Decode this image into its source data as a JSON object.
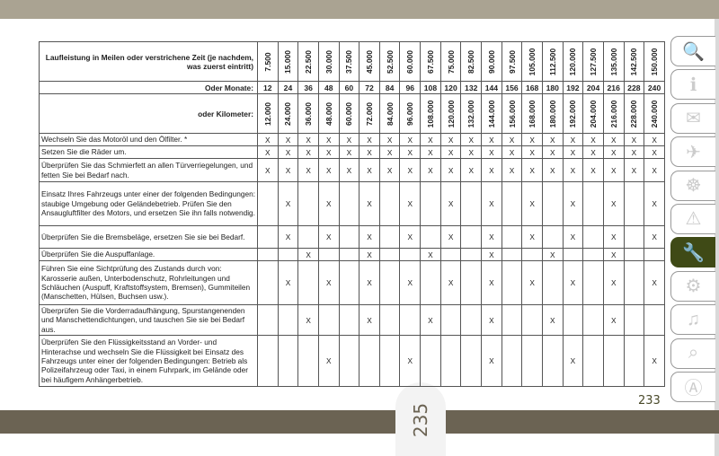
{
  "page_left_number": "235",
  "page_right_number": "233",
  "table": {
    "header_miles": "Laufleistung in Meilen oder verstrichene Zeit (je nachdem, was zuerst eintritt)",
    "header_months": "Oder Monate:",
    "header_km": "oder Kilometer:",
    "miles": [
      "7.500",
      "15.000",
      "22.500",
      "30.000",
      "37.500",
      "45.000",
      "52.500",
      "60.000",
      "67.500",
      "75.000",
      "82.500",
      "90.000",
      "97.500",
      "105.000",
      "112.500",
      "120.000",
      "127.500",
      "135.000",
      "142.500",
      "150.000"
    ],
    "months": [
      "12",
      "24",
      "36",
      "48",
      "60",
      "72",
      "84",
      "96",
      "108",
      "120",
      "132",
      "144",
      "156",
      "168",
      "180",
      "192",
      "204",
      "216",
      "228",
      "240"
    ],
    "km": [
      "12.000",
      "24.000",
      "36.000",
      "48.000",
      "60.000",
      "72.000",
      "84.000",
      "96.000",
      "108.000",
      "120.000",
      "132.000",
      "144.000",
      "156.000",
      "168.000",
      "180.000",
      "192.000",
      "204.000",
      "216.000",
      "228.000",
      "240.000"
    ],
    "rows": [
      {
        "task": "Wechseln Sie das Motoröl und den Ölfilter. *",
        "marks": [
          "X",
          "X",
          "X",
          "X",
          "X",
          "X",
          "X",
          "X",
          "X",
          "X",
          "X",
          "X",
          "X",
          "X",
          "X",
          "X",
          "X",
          "X",
          "X",
          "X"
        ]
      },
      {
        "task": "Setzen Sie die Räder um.",
        "marks": [
          "X",
          "X",
          "X",
          "X",
          "X",
          "X",
          "X",
          "X",
          "X",
          "X",
          "X",
          "X",
          "X",
          "X",
          "X",
          "X",
          "X",
          "X",
          "X",
          "X"
        ]
      },
      {
        "task": "Überprüfen Sie das Schmierfett an allen Türverriegelungen, und fetten Sie bei Bedarf nach.",
        "marks": [
          "X",
          "X",
          "X",
          "X",
          "X",
          "X",
          "X",
          "X",
          "X",
          "X",
          "X",
          "X",
          "X",
          "X",
          "X",
          "X",
          "X",
          "X",
          "X",
          "X"
        ]
      },
      {
        "task": "Einsatz Ihres Fahrzeugs unter einer der folgenden Bedingungen: staubige Umgebung oder Geländebetrieb. Prüfen Sie den Ansaugluftfilter des Motors, und ersetzen Sie ihn falls notwendig.",
        "marks": [
          "",
          "X",
          "",
          "X",
          "",
          "X",
          "",
          "X",
          "",
          "X",
          "",
          "X",
          "",
          "X",
          "",
          "X",
          "",
          "X",
          "",
          "X"
        ]
      },
      {
        "task": "Überprüfen Sie die Bremsbeläge, ersetzen Sie sie bei Bedarf.",
        "marks": [
          "",
          "X",
          "",
          "X",
          "",
          "X",
          "",
          "X",
          "",
          "X",
          "",
          "X",
          "",
          "X",
          "",
          "X",
          "",
          "X",
          "",
          "X"
        ]
      },
      {
        "task": "Überprüfen Sie die Auspuffanlage.",
        "marks": [
          "",
          "",
          "X",
          "",
          "",
          "X",
          "",
          "",
          "X",
          "",
          "",
          "X",
          "",
          "",
          "X",
          "",
          "",
          "X",
          "",
          ""
        ]
      },
      {
        "task": "Führen Sie eine Sichtprüfung des Zustands durch von: Karosserie außen, Unterbodenschutz, Rohrleitungen und Schläuchen (Auspuff, Kraftstoffsystem, Bremsen), Gummiteilen (Manschetten, Hülsen, Buchsen usw.).",
        "marks": [
          "",
          "X",
          "",
          "X",
          "",
          "X",
          "",
          "X",
          "",
          "X",
          "",
          "X",
          "",
          "X",
          "",
          "X",
          "",
          "X",
          "",
          "X"
        ]
      },
      {
        "task": "Überprüfen Sie die Vorderradaufhängung, Spurstangenenden und Manschettendichtungen, und tauschen Sie sie bei Bedarf aus.",
        "marks": [
          "",
          "",
          "X",
          "",
          "",
          "X",
          "",
          "",
          "X",
          "",
          "",
          "X",
          "",
          "",
          "X",
          "",
          "",
          "X",
          "",
          ""
        ]
      },
      {
        "task": "Überprüfen Sie den Flüssigkeitsstand an Vorder- und Hinterachse und wechseln Sie die Flüssigkeit bei Einsatz des Fahrzeugs unter einer der folgenden Bedingungen: Betrieb als Polizeifahrzeug oder Taxi, in einem Fuhrpark, im Gelände oder bei häufigem Anhängerbetrieb.",
        "marks": [
          "",
          "",
          "",
          "X",
          "",
          "",
          "",
          "X",
          "",
          "",
          "",
          "X",
          "",
          "",
          "",
          "X",
          "",
          "",
          "",
          "X"
        ]
      }
    ]
  },
  "sidebar": {
    "active_color": "#3f4a16",
    "items": [
      {
        "icon": "car-search-icon",
        "glyph": "🔍"
      },
      {
        "icon": "car-info-icon",
        "glyph": "ℹ"
      },
      {
        "icon": "warning-light-message-icon",
        "glyph": "✉"
      },
      {
        "icon": "airbag-seat-icon",
        "glyph": "✈"
      },
      {
        "icon": "key-steering-wheel-icon",
        "glyph": "☸"
      },
      {
        "icon": "car-warning-triangle-icon",
        "glyph": "⚠"
      },
      {
        "icon": "car-wrench-icon",
        "glyph": "🔧",
        "active": true
      },
      {
        "icon": "document-settings-icon",
        "glyph": "⚙"
      },
      {
        "icon": "multimedia-icon",
        "glyph": "♫"
      },
      {
        "icon": "search-icon",
        "glyph": "⌕"
      },
      {
        "icon": "alphabetical-index-icon",
        "glyph": "Ⓐ"
      }
    ]
  }
}
